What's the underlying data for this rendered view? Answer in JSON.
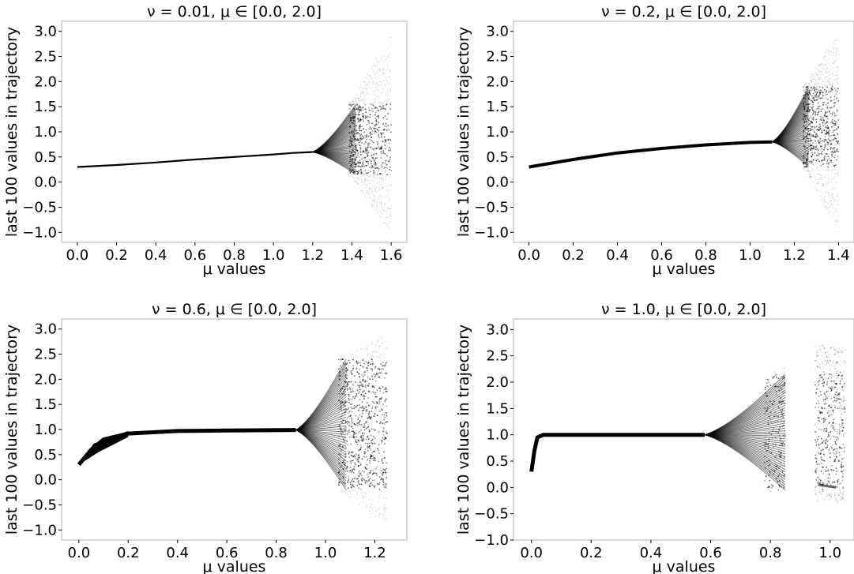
{
  "chart_data": [
    {
      "type": "scatter",
      "title": "ν = 0.01, μ ∈ [0.0, 2.0]",
      "xlabel": "μ values",
      "ylabel": "last 100 values in trajectory",
      "xlim": [
        -0.08,
        1.68
      ],
      "ylim": [
        -1.2,
        3.2
      ],
      "xticks": [
        "0.0",
        "0.2",
        "0.4",
        "0.6",
        "0.8",
        "1.0",
        "1.2",
        "1.4",
        "1.6"
      ],
      "yticks": [
        "-1.0",
        "-0.5",
        "0.0",
        "0.5",
        "1.0",
        "1.5",
        "2.0",
        "2.5",
        "3.0"
      ],
      "grid": false,
      "stable_branch": [
        [
          0.0,
          0.3
        ],
        [
          0.2,
          0.34
        ],
        [
          0.4,
          0.39
        ],
        [
          0.6,
          0.45
        ],
        [
          0.8,
          0.5
        ],
        [
          1.0,
          0.55
        ],
        [
          1.1,
          0.58
        ],
        [
          1.2,
          0.6
        ]
      ],
      "bifurcation_region": {
        "mu_start": 1.2,
        "mu_end": 1.6,
        "y_min": -1.0,
        "y_max": 3.0
      },
      "gap": null
    },
    {
      "type": "scatter",
      "title": "ν = 0.2, μ ∈ [0.0, 2.0]",
      "xlabel": "μ values",
      "ylabel": "last 100 values in trajectory",
      "xlim": [
        -0.07,
        1.47
      ],
      "ylim": [
        -1.2,
        3.2
      ],
      "xticks": [
        "0.0",
        "0.2",
        "0.4",
        "0.6",
        "0.8",
        "1.0",
        "1.2",
        "1.4"
      ],
      "yticks": [
        "-1.0",
        "-0.5",
        "0.0",
        "0.5",
        "1.0",
        "1.5",
        "2.0",
        "2.5",
        "3.0"
      ],
      "grid": false,
      "stable_branch": [
        [
          0.0,
          0.3
        ],
        [
          0.2,
          0.45
        ],
        [
          0.4,
          0.58
        ],
        [
          0.6,
          0.67
        ],
        [
          0.8,
          0.74
        ],
        [
          1.0,
          0.79
        ],
        [
          1.1,
          0.8
        ]
      ],
      "bifurcation_region": {
        "mu_start": 1.1,
        "mu_end": 1.4,
        "y_min": -1.0,
        "y_max": 3.0
      },
      "gap": null
    },
    {
      "type": "scatter",
      "title": "ν = 0.6, μ ∈ [0.0, 2.0]",
      "xlabel": "μ values",
      "ylabel": "last 100 values in trajectory",
      "xlim": [
        -0.07,
        1.33
      ],
      "ylim": [
        -1.2,
        3.2
      ],
      "xticks": [
        "0.0",
        "0.2",
        "0.4",
        "0.6",
        "0.8",
        "1.0",
        "1.2"
      ],
      "yticks": [
        "-1.0",
        "-0.5",
        "0.0",
        "0.5",
        "1.0",
        "1.5",
        "2.0",
        "2.5",
        "3.0"
      ],
      "grid": false,
      "stable_branch": [
        [
          0.0,
          0.3
        ],
        [
          0.05,
          0.6
        ],
        [
          0.1,
          0.8
        ],
        [
          0.2,
          0.92
        ],
        [
          0.4,
          0.97
        ],
        [
          0.6,
          0.98
        ],
        [
          0.88,
          0.99
        ]
      ],
      "bifurcation_region": {
        "mu_start": 0.88,
        "mu_end": 1.25,
        "y_min": -0.9,
        "y_max": 2.9
      },
      "gap": null
    },
    {
      "type": "scatter",
      "title": "ν = 1.0, μ ∈ [0.0, 2.0]",
      "xlabel": "μ values",
      "ylabel": "last 100 values in trajectory",
      "xlim": [
        -0.06,
        1.08
      ],
      "ylim": [
        -1.0,
        3.2
      ],
      "xticks": [
        "0.0",
        "0.2",
        "0.4",
        "0.6",
        "0.8",
        "1.0"
      ],
      "yticks": [
        "-1.0",
        "-0.5",
        "0.0",
        "0.5",
        "1.0",
        "1.5",
        "2.0",
        "2.5",
        "3.0"
      ],
      "grid": false,
      "stable_branch": [
        [
          0.0,
          0.3
        ],
        [
          0.01,
          0.7
        ],
        [
          0.02,
          0.95
        ],
        [
          0.04,
          1.0
        ],
        [
          0.58,
          1.0
        ]
      ],
      "bifurcation_region": {
        "mu_start": 0.58,
        "mu_end": 1.05,
        "y_min": -0.3,
        "y_max": 2.8
      },
      "gap": [
        0.85,
        0.95
      ]
    }
  ]
}
